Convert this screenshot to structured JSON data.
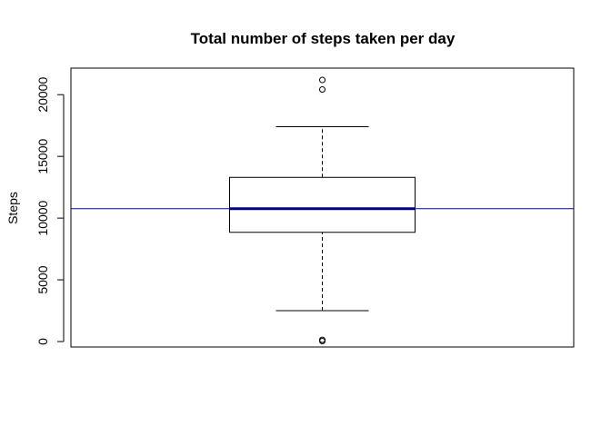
{
  "chart_data": {
    "type": "boxplot",
    "title": "Total number of steps taken per day",
    "xlabel": "",
    "ylabel": "Steps",
    "ylim": [
      -440,
      22150
    ],
    "yticks": [
      0,
      5000,
      10000,
      15000,
      20000
    ],
    "ytick_labels": [
      "0",
      "5000",
      "10000",
      "15000",
      "20000"
    ],
    "grid": false,
    "box": {
      "whisker_low": 2500,
      "q1": 8850,
      "median": 10765,
      "q3": 13300,
      "whisker_high": 17400
    },
    "outliers": [
      40,
      140,
      20420,
      21190
    ],
    "reference_line": {
      "value": 10766,
      "color": "#0000cc"
    },
    "median_color": "#000080"
  }
}
